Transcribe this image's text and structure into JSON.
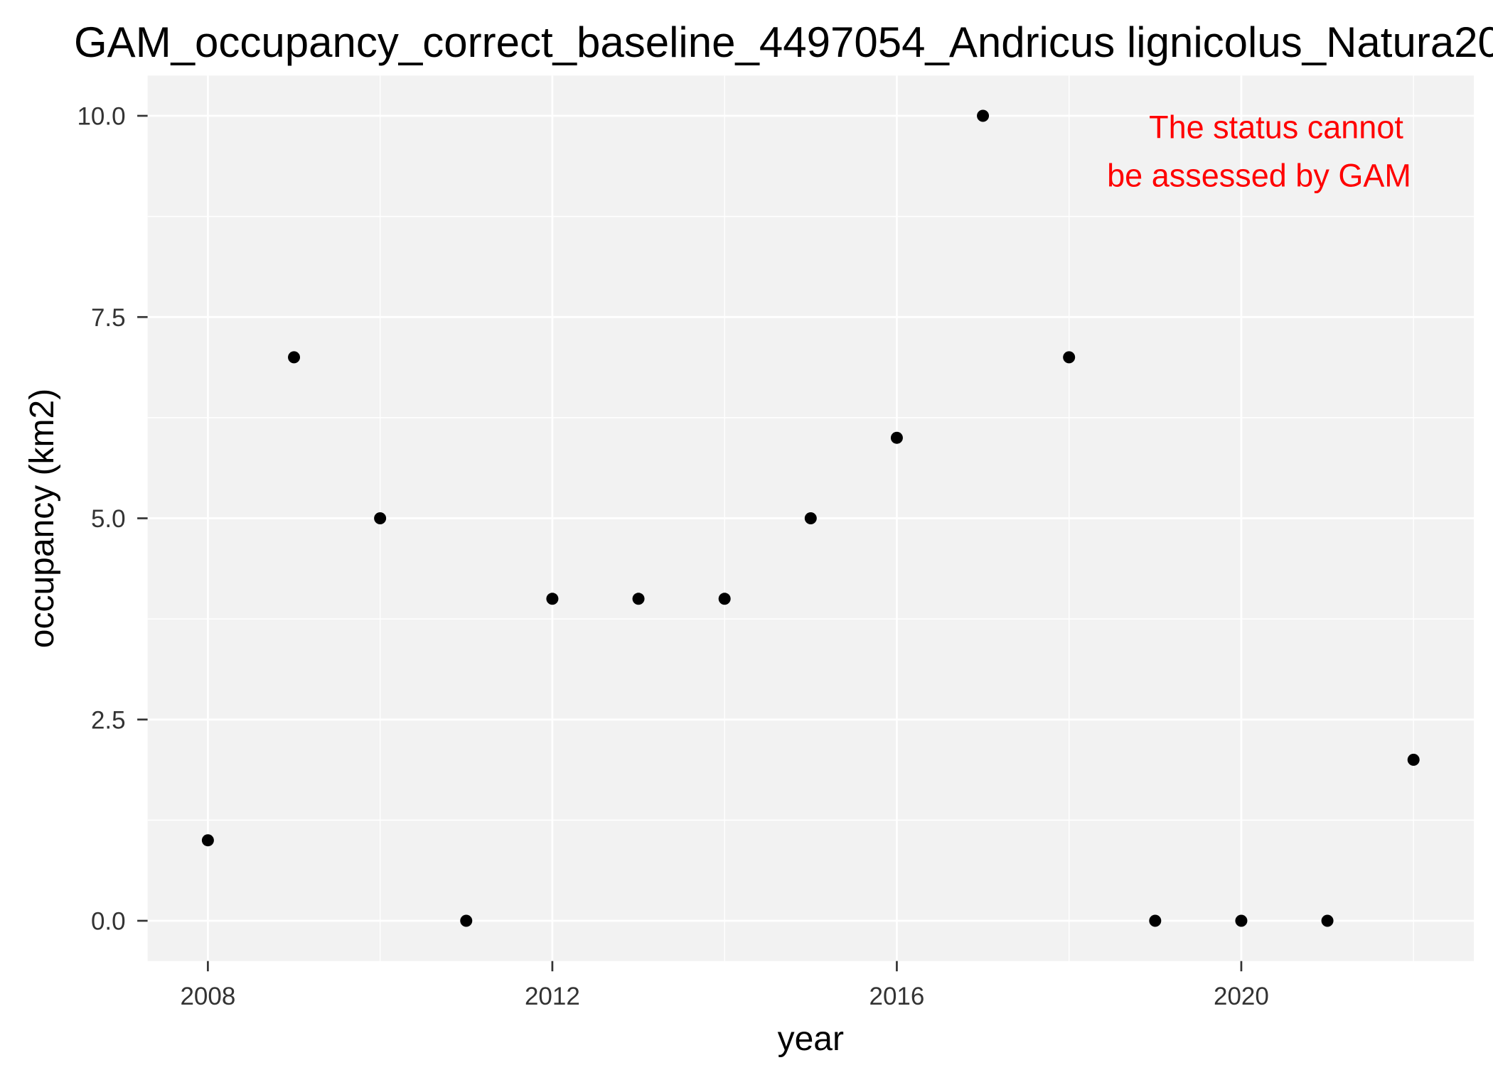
{
  "chart_data": {
    "type": "scatter",
    "title": "GAM_occupancy_correct_baseline_4497054_Andricus lignicolus_Natura20",
    "xlabel": "year",
    "ylabel": "occupancy (km2)",
    "x": [
      2008,
      2009,
      2010,
      2011,
      2012,
      2013,
      2014,
      2015,
      2016,
      2017,
      2018,
      2019,
      2020,
      2021,
      2022
    ],
    "y": [
      1,
      7,
      5,
      0,
      4,
      4,
      4,
      5,
      6,
      10,
      7,
      0,
      0,
      0,
      2
    ],
    "xlim": [
      2007.3,
      2022.7
    ],
    "ylim": [
      -0.5,
      10.5
    ],
    "x_ticks": [
      2008,
      2012,
      2016,
      2020
    ],
    "x_tick_labels": [
      "2008",
      "2012",
      "2016",
      "2020"
    ],
    "x_minor_gridlines": [
      2010,
      2014,
      2018,
      2022
    ],
    "y_ticks": [
      0,
      2.5,
      5,
      7.5,
      10
    ],
    "y_tick_labels": [
      "0.0",
      "2.5",
      "5.0",
      "7.5",
      "10.0"
    ],
    "y_minor_gridlines": [
      1.25,
      3.75,
      6.25,
      8.75
    ],
    "grid": true,
    "annotation": {
      "lines": [
        "The status cannot",
        "be assessed by GAM"
      ],
      "placement": "top-right"
    },
    "colors": {
      "points": "#000000",
      "annotation": "#FF0000",
      "panel_background": "#F2F2F2",
      "grid": "#FFFFFF"
    }
  }
}
